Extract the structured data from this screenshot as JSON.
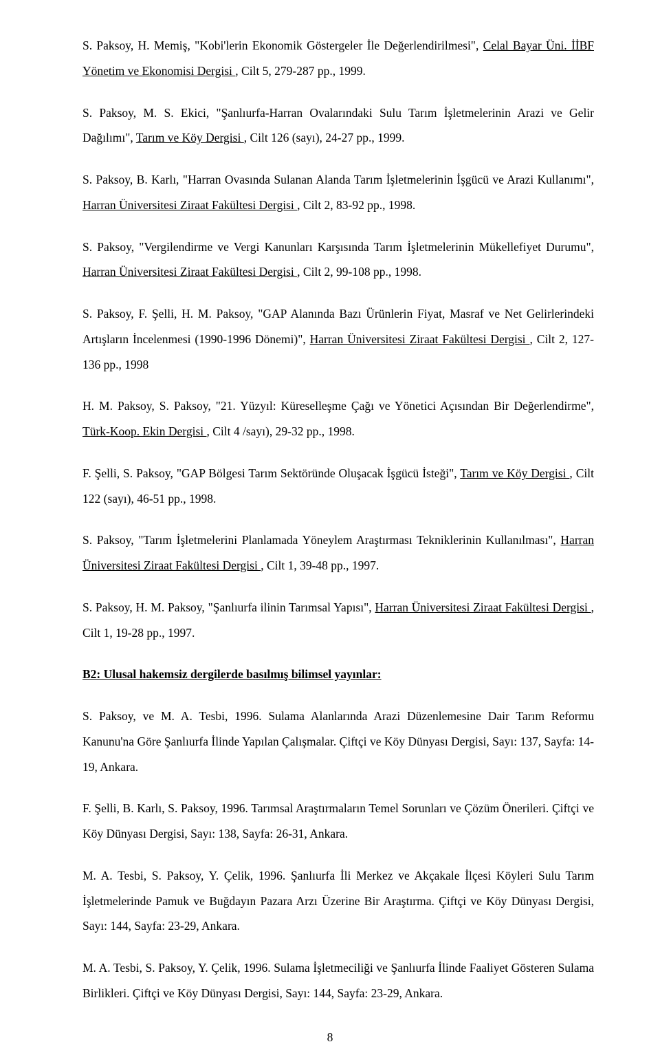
{
  "entries": [
    {
      "prefix": "S. Paksoy, H. Memiş, \"Kobi'lerin Ekonomik Göstergeler İle Değerlendirilmesi\", ",
      "underline": "Celal Bayar Üni. İİBF Yönetim ve Ekonomisi Dergisi ",
      "suffix": ", Cilt 5, 279-287 pp., 1999."
    },
    {
      "prefix": "S. Paksoy, M. S. Ekici, \"Şanlıurfa-Harran Ovalarındaki Sulu Tarım İşletmelerinin Arazi ve Gelir Dağılımı\", ",
      "underline": "Tarım ve Köy Dergisi ",
      "suffix": ", Cilt 126 (sayı), 24-27 pp., 1999."
    },
    {
      "prefix": "S. Paksoy, B. Karlı, \"Harran Ovasında Sulanan Alanda Tarım İşletmelerinin İşgücü ve Arazi Kullanımı\", ",
      "underline": "Harran Üniversitesi Ziraat Fakültesi Dergisi ",
      "suffix": ", Cilt 2, 83-92 pp., 1998."
    },
    {
      "prefix": "S. Paksoy, \"Vergilendirme ve Vergi Kanunları Karşısında Tarım İşletmelerinin Mükellefiyet Durumu\", ",
      "underline": "Harran Üniversitesi Ziraat Fakültesi Dergisi ",
      "suffix": ", Cilt 2, 99-108 pp., 1998."
    },
    {
      "prefix": "S. Paksoy, F. Şelli, H. M. Paksoy, \"GAP Alanında Bazı Ürünlerin Fiyat, Masraf ve Net Gelirlerindeki Artışların İncelenmesi (1990-1996 Dönemi)\", ",
      "underline": "Harran Üniversitesi Ziraat Fakültesi Dergisi ",
      "suffix": ", Cilt 2, 127-136 pp., 1998"
    },
    {
      "prefix": "H. M. Paksoy, S. Paksoy, \"21. Yüzyıl: Küreselleşme Çağı ve Yönetici Açısından Bir Değerlendirme\", ",
      "underline": "Türk-Koop. Ekin Dergisi ",
      "suffix": ", Cilt 4 /sayı), 29-32 pp., 1998."
    },
    {
      "prefix": "F. Şelli, S. Paksoy, \"GAP Bölgesi Tarım Sektöründe Oluşacak İşgücü İsteği\", ",
      "underline": "Tarım ve Köy Dergisi ",
      "suffix": ", Cilt 122 (sayı), 46-51 pp., 1998."
    },
    {
      "prefix": "S. Paksoy, \"Tarım İşletmelerini Planlamada Yöneylem Araştırması Tekniklerinin Kullanılması\", ",
      "underline": "Harran Üniversitesi Ziraat Fakültesi Dergisi ",
      "suffix": ", Cilt 1, 39-48 pp., 1997."
    },
    {
      "prefix": "S. Paksoy, H. M. Paksoy, \"Şanlıurfa ilinin Tarımsal Yapısı\", ",
      "underline": "Harran Üniversitesi Ziraat Fakültesi Dergisi ",
      "suffix": ", Cilt 1, 19-28 pp., 1997."
    }
  ],
  "section_heading": "B2: Ulusal hakemsiz dergilerde basılmış bilimsel yayınlar:",
  "plain_entries": [
    "S. Paksoy, ve M. A. Tesbi, 1996. Sulama Alanlarında Arazi Düzenlemesine Dair Tarım Reformu Kanunu'na Göre Şanlıurfa İlinde Yapılan Çalışmalar. Çiftçi ve Köy Dünyası Dergisi, Sayı: 137, Sayfa: 14-19, Ankara.",
    "F. Şelli, B. Karlı, S. Paksoy, 1996. Tarımsal Araştırmaların Temel Sorunları ve Çözüm Önerileri. Çiftçi ve Köy Dünyası Dergisi, Sayı: 138, Sayfa: 26-31, Ankara.",
    "M. A. Tesbi, S. Paksoy, Y. Çelik, 1996. Şanlıurfa İli Merkez ve Akçakale İlçesi Köyleri Sulu Tarım İşletmelerinde Pamuk ve Buğdayın Pazara Arzı Üzerine Bir Araştırma. Çiftçi ve Köy Dünyası Dergisi, Sayı: 144, Sayfa: 23-29, Ankara.",
    "M. A. Tesbi, S. Paksoy, Y. Çelik, 1996. Sulama İşletmeciliği ve Şanlıurfa İlinde Faaliyet Gösteren Sulama Birlikleri. Çiftçi ve Köy Dünyası Dergisi, Sayı: 144, Sayfa: 23-29, Ankara."
  ],
  "page_number": "8"
}
